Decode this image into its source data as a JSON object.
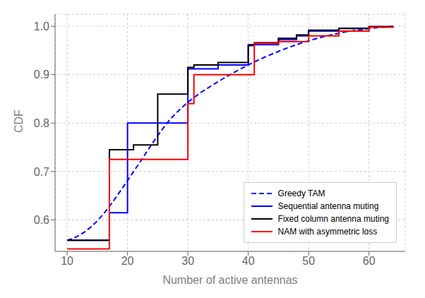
{
  "chart_data": {
    "type": "line",
    "title": "",
    "xlabel": "Number of active antennas",
    "ylabel": "CDF",
    "xlim": [
      8,
      66
    ],
    "ylim": [
      0.535,
      1.025
    ],
    "xticks": [
      10,
      20,
      30,
      40,
      50,
      60
    ],
    "yticks": [
      0.6,
      0.7,
      0.8,
      0.9,
      {
        "value": 1.0,
        "label": "1.0"
      }
    ],
    "grid": true,
    "legend": "lower right",
    "series": [
      {
        "name": "Greedy TAM",
        "type": "line",
        "color": "blue",
        "line_style": "dashed",
        "x": [
          10,
          11,
          12,
          13,
          14,
          15,
          16,
          17,
          18,
          19,
          20,
          21,
          22,
          23,
          24,
          25,
          26,
          27,
          28,
          29,
          30,
          32,
          34,
          36,
          38,
          40,
          42,
          44,
          46,
          48,
          50,
          52,
          54,
          56,
          58,
          60,
          62,
          64
        ],
        "values": [
          0.558,
          0.562,
          0.568,
          0.576,
          0.586,
          0.598,
          0.612,
          0.628,
          0.645,
          0.663,
          0.681,
          0.7,
          0.718,
          0.737,
          0.756,
          0.774,
          0.791,
          0.807,
          0.82,
          0.832,
          0.843,
          0.862,
          0.878,
          0.893,
          0.907,
          0.92,
          0.932,
          0.943,
          0.953,
          0.962,
          0.97,
          0.977,
          0.983,
          0.988,
          0.992,
          0.995,
          0.998,
          1.0
        ]
      },
      {
        "name": "Sequential antenna muting",
        "type": "step",
        "color": "blue",
        "line_style": "solid",
        "x": [
          10,
          16,
          17,
          20,
          21,
          25,
          30,
          31,
          35,
          40,
          41,
          45,
          48,
          50,
          55,
          60,
          64
        ],
        "values": [
          0.558,
          0.558,
          0.615,
          0.8,
          0.8,
          0.8,
          0.912,
          0.912,
          0.92,
          0.962,
          0.962,
          0.972,
          0.98,
          0.99,
          0.995,
          0.999,
          1.0
        ]
      },
      {
        "name": "Fixed column antenna muting",
        "type": "step",
        "color": "black",
        "line_style": "solid",
        "x": [
          10,
          16,
          17,
          20,
          21,
          25,
          30,
          31,
          35,
          40,
          41,
          45,
          48,
          50,
          55,
          60,
          64
        ],
        "values": [
          0.558,
          0.558,
          0.745,
          0.745,
          0.755,
          0.86,
          0.915,
          0.92,
          0.925,
          0.96,
          0.966,
          0.975,
          0.982,
          0.992,
          0.996,
          0.999,
          1.0
        ]
      },
      {
        "name": "NAM with asymmetric loss",
        "type": "step",
        "color": "red",
        "line_style": "solid",
        "x": [
          10,
          16,
          17,
          22,
          30,
          31,
          40,
          41,
          45,
          50,
          55,
          60,
          64
        ],
        "values": [
          0.54,
          0.54,
          0.725,
          0.725,
          0.84,
          0.9,
          0.9,
          0.965,
          0.968,
          0.98,
          0.99,
          0.998,
          1.0
        ]
      }
    ]
  }
}
